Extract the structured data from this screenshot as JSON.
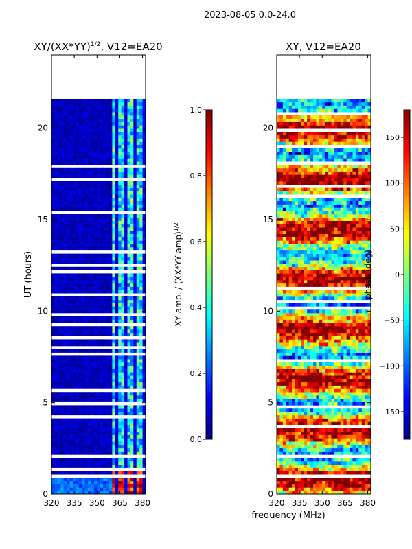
{
  "suptitle": "2023-08-05 0.0-24.0",
  "shared_xlabel": "frequency (MHz)",
  "colormap": [
    "#00007f",
    "#0000ff",
    "#007fff",
    "#00ffff",
    "#7fff7f",
    "#ffff00",
    "#ff7f00",
    "#ff0000",
    "#7f0000"
  ],
  "chart_data": [
    {
      "type": "heatmap",
      "title": "XY/(XX*YY)",
      "title_sup": "1/2",
      "title_tail": ", V12=EA20",
      "xlabel": "",
      "ylabel": "UT (hours)",
      "xlim": [
        320,
        382
      ],
      "ylim": [
        0,
        24
      ],
      "xticks": [
        320,
        335,
        350,
        365,
        380
      ],
      "yticks": [
        0,
        5,
        10,
        15,
        20
      ],
      "data_extent_hours": [
        0,
        21.6
      ],
      "active_channel_band_mhz": [
        360,
        382
      ],
      "colorbar": {
        "label": "XY amp. / (XX*YY amp)",
        "label_sup": "1/2",
        "range": [
          0.0,
          1.0
        ],
        "ticks": [
          "0.0",
          "0.2",
          "0.4",
          "0.6",
          "0.8",
          "1.0"
        ]
      }
    },
    {
      "type": "heatmap",
      "title": "XY, V12=EA20",
      "xlabel": "frequency (MHz)",
      "ylabel": "",
      "xlim": [
        320,
        382
      ],
      "ylim": [
        0,
        24
      ],
      "xticks": [
        320,
        335,
        350,
        365,
        380
      ],
      "yticks": [
        0,
        5,
        10,
        15,
        20
      ],
      "data_extent_hours": [
        0,
        21.6
      ],
      "colorbar": {
        "label": "phase (deg)",
        "range": [
          -180,
          180
        ],
        "ticks": [
          "150",
          "100",
          "50",
          "0",
          "−50",
          "−100",
          "−150"
        ],
        "tick_values": [
          150,
          100,
          50,
          0,
          -50,
          -100,
          -150
        ]
      }
    }
  ]
}
